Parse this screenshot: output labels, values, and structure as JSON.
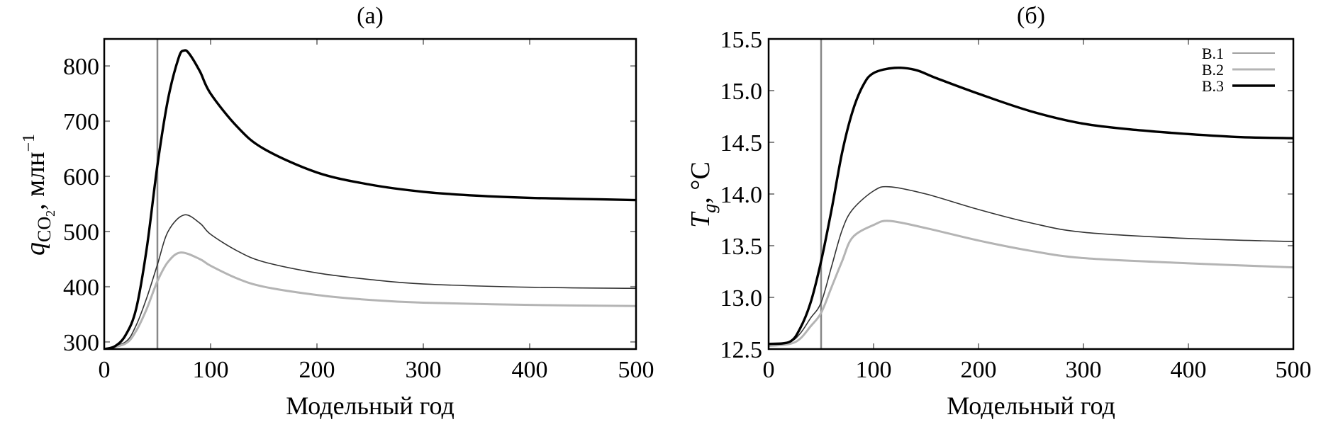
{
  "chart_data": [
    {
      "type": "line",
      "title": "(a)",
      "xlabel": "Модельный год",
      "ylabel": {
        "symbol": "q",
        "subscript": "CO",
        "subsubscript": "2",
        "unit": ", млн",
        "unit_sup": "−1"
      },
      "xlim": [
        0,
        500
      ],
      "ylim": [
        287,
        849
      ],
      "xticks": [
        0,
        100,
        200,
        300,
        400,
        500
      ],
      "yticks": [
        300,
        400,
        500,
        600,
        700,
        800
      ],
      "grid": false,
      "vertical_marker_x": 50,
      "series": [
        {
          "name": "B.1",
          "color": "#333333",
          "x": [
            0,
            20,
            30,
            40,
            50,
            60,
            75,
            90,
            100,
            125,
            150,
            200,
            250,
            300,
            400,
            500
          ],
          "y": [
            287,
            300,
            330,
            380,
            440,
            500,
            530,
            515,
            495,
            465,
            445,
            425,
            413,
            405,
            399,
            397
          ]
        },
        {
          "name": "B.2",
          "color": "#b4b4b4",
          "x": [
            0,
            20,
            30,
            40,
            50,
            60,
            72,
            90,
            100,
            125,
            150,
            200,
            250,
            300,
            400,
            500
          ],
          "y": [
            287,
            297,
            320,
            360,
            410,
            445,
            462,
            450,
            438,
            415,
            400,
            385,
            376,
            371,
            367,
            365
          ]
        },
        {
          "name": "B.3",
          "color": "#000000",
          "x": [
            0,
            10,
            20,
            30,
            40,
            50,
            60,
            70,
            75,
            80,
            90,
            100,
            125,
            150,
            200,
            250,
            300,
            350,
            400,
            450,
            500
          ],
          "y": [
            287,
            292,
            312,
            360,
            470,
            620,
            740,
            815,
            828,
            822,
            790,
            750,
            690,
            650,
            607,
            585,
            572,
            565,
            561,
            559,
            557
          ]
        }
      ]
    },
    {
      "type": "line",
      "title": "(б)",
      "xlabel": "Модельный год",
      "ylabel": {
        "symbol": "T",
        "subscript": "g",
        "unit": ", °C"
      },
      "xlim": [
        0,
        500
      ],
      "ylim": [
        12.5,
        15.5
      ],
      "xticks": [
        0,
        100,
        200,
        300,
        400,
        500
      ],
      "yticks": [
        "12.5",
        "13.0",
        "13.5",
        "14.0",
        "14.5",
        "15.0",
        "15.5"
      ],
      "grid": false,
      "legend": "top-right",
      "vertical_marker_x": 50,
      "series": [
        {
          "name": "B.1",
          "color": "#333333",
          "legend_color": "#808080",
          "x": [
            0,
            20,
            30,
            40,
            50,
            60,
            70,
            80,
            100,
            115,
            150,
            200,
            250,
            300,
            400,
            500
          ],
          "y": [
            12.55,
            12.57,
            12.65,
            12.8,
            12.95,
            13.3,
            13.65,
            13.85,
            14.03,
            14.07,
            14.0,
            13.85,
            13.72,
            13.63,
            13.57,
            13.54
          ]
        },
        {
          "name": "B.2",
          "color": "#b4b4b4",
          "x": [
            0,
            20,
            30,
            40,
            50,
            60,
            70,
            80,
            100,
            115,
            150,
            200,
            250,
            300,
            400,
            500
          ],
          "y": [
            12.53,
            12.55,
            12.6,
            12.72,
            12.85,
            13.1,
            13.35,
            13.58,
            13.7,
            13.74,
            13.67,
            13.55,
            13.45,
            13.38,
            13.33,
            13.29
          ]
        },
        {
          "name": "B.3",
          "color": "#000000",
          "x": [
            0,
            20,
            30,
            40,
            50,
            60,
            70,
            80,
            90,
            100,
            120,
            140,
            160,
            200,
            250,
            300,
            350,
            400,
            450,
            500
          ],
          "y": [
            12.55,
            12.57,
            12.7,
            12.95,
            13.35,
            13.85,
            14.4,
            14.8,
            15.05,
            15.17,
            15.22,
            15.2,
            15.12,
            14.97,
            14.8,
            14.68,
            14.62,
            14.58,
            14.55,
            14.54
          ]
        }
      ]
    }
  ]
}
